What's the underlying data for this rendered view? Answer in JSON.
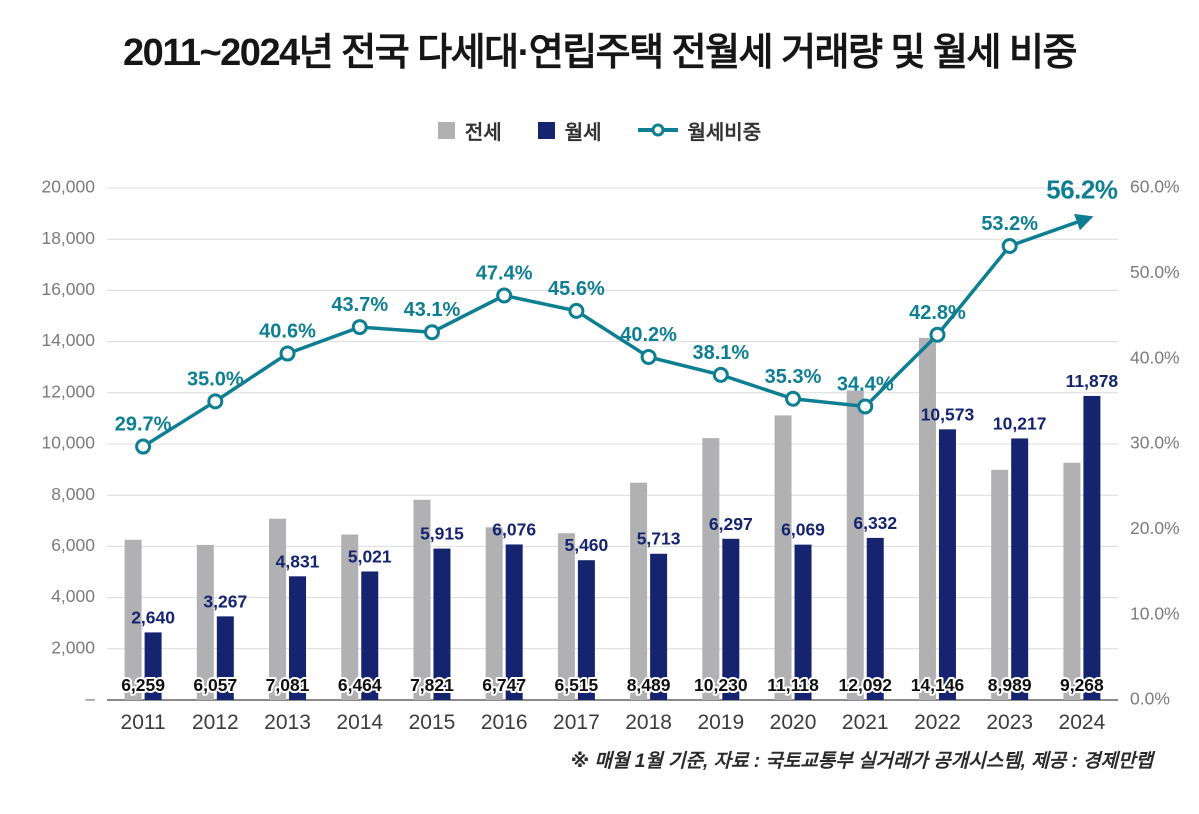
{
  "title": "2011~2024년 전국 다세대·연립주택 전월세 거래량 및 월세 비중",
  "footnote": "※ 매월 1월 기준, 자료 : 국토교통부 실거래가 공개시스템, 제공 : 경제만랩",
  "legend": [
    {
      "label": "전세",
      "marker": "square",
      "color": "#b1b1b3"
    },
    {
      "label": "월세",
      "marker": "square",
      "color": "#16246f"
    },
    {
      "label": "월세비중",
      "marker": "line-dot",
      "color": "#0e7f92"
    }
  ],
  "chart_data": {
    "type": "bar+line",
    "categories": [
      "2011",
      "2012",
      "2013",
      "2014",
      "2015",
      "2016",
      "2017",
      "2018",
      "2019",
      "2020",
      "2021",
      "2022",
      "2023",
      "2024"
    ],
    "series": [
      {
        "name": "전세",
        "type": "bar",
        "axis": "left",
        "color": "#b1b1b3",
        "values": [
          6259,
          6057,
          7081,
          6464,
          7821,
          6747,
          6515,
          8489,
          10230,
          11118,
          12092,
          14146,
          8989,
          9268
        ]
      },
      {
        "name": "월세",
        "type": "bar",
        "axis": "left",
        "color": "#16246f",
        "values": [
          2640,
          3267,
          4831,
          5021,
          5915,
          6076,
          5460,
          5713,
          6297,
          6069,
          6332,
          10573,
          10217,
          11878
        ]
      },
      {
        "name": "월세비중",
        "type": "line",
        "axis": "right",
        "unit": "%",
        "color": "#0e7f92",
        "values": [
          29.7,
          35.0,
          40.6,
          43.7,
          43.1,
          47.4,
          45.6,
          40.2,
          38.1,
          35.3,
          34.4,
          42.8,
          53.2,
          56.2
        ]
      }
    ],
    "left_axis": {
      "min": 0,
      "max": 20000,
      "step": 2000,
      "zero_label": "–"
    },
    "right_axis": {
      "min": 0,
      "max": 60,
      "step": 10,
      "suffix": "%"
    },
    "grid": true,
    "legend_position": "top",
    "last_point_style": "arrow"
  }
}
